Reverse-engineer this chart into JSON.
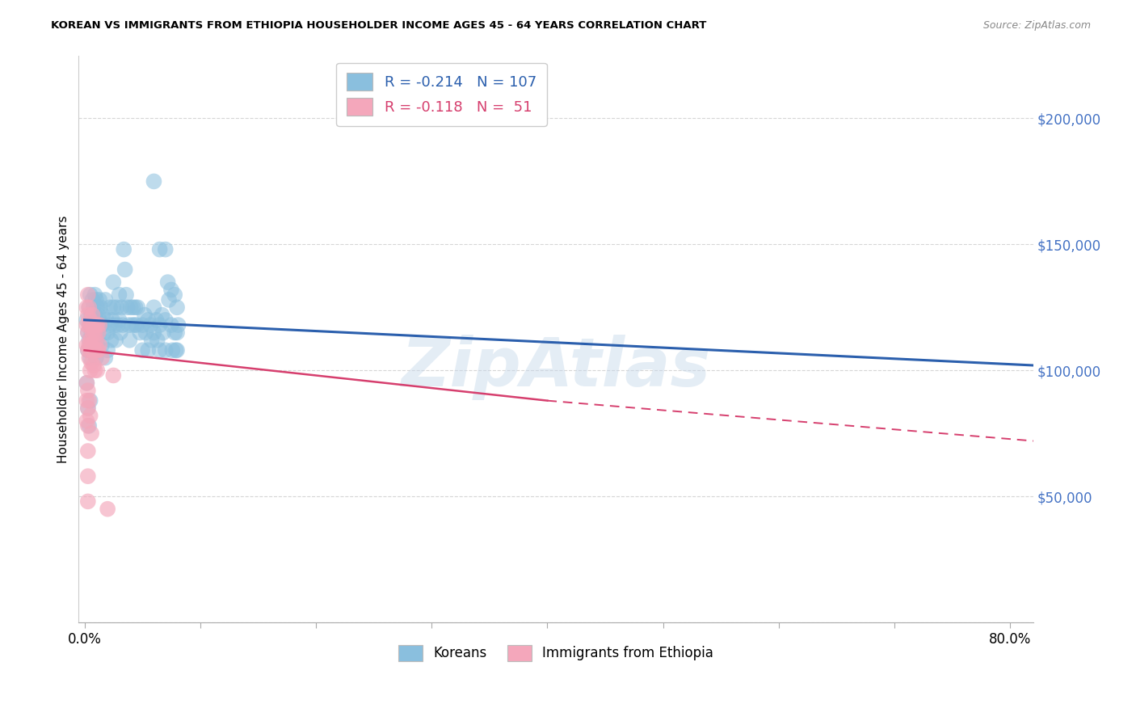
{
  "title": "KOREAN VS IMMIGRANTS FROM ETHIOPIA HOUSEHOLDER INCOME AGES 45 - 64 YEARS CORRELATION CHART",
  "source": "Source: ZipAtlas.com",
  "ylabel": "Householder Income Ages 45 - 64 years",
  "xlim": [
    -0.005,
    0.82
  ],
  "ylim": [
    0,
    225000
  ],
  "yticks": [
    0,
    50000,
    100000,
    150000,
    200000
  ],
  "ytick_labels": [
    "",
    "$50,000",
    "$100,000",
    "$150,000",
    "$200,000"
  ],
  "legend_korean_R": "-0.214",
  "legend_korean_N": "107",
  "legend_ethiopia_R": "-0.118",
  "legend_ethiopia_N": "51",
  "korean_color": "#8abfde",
  "ethiopia_color": "#f4a7bb",
  "korean_line_color": "#2b5fad",
  "ethiopia_line_color": "#d63f6e",
  "watermark": "ZipAtlas",
  "korean_line": [
    0.0,
    120000,
    0.82,
    102000
  ],
  "ethiopia_line_solid": [
    0.0,
    108000,
    0.4,
    88000
  ],
  "ethiopia_line_dashed": [
    0.4,
    88000,
    0.82,
    72000
  ],
  "korean_points": [
    [
      0.002,
      120000
    ],
    [
      0.003,
      115000
    ],
    [
      0.003,
      108000
    ],
    [
      0.004,
      125000
    ],
    [
      0.004,
      112000
    ],
    [
      0.005,
      130000
    ],
    [
      0.005,
      118000
    ],
    [
      0.005,
      105000
    ],
    [
      0.006,
      122000
    ],
    [
      0.006,
      115000
    ],
    [
      0.006,
      108000
    ],
    [
      0.007,
      128000
    ],
    [
      0.007,
      120000
    ],
    [
      0.007,
      112000
    ],
    [
      0.008,
      125000
    ],
    [
      0.008,
      118000
    ],
    [
      0.008,
      110000
    ],
    [
      0.009,
      130000
    ],
    [
      0.009,
      122000
    ],
    [
      0.009,
      115000
    ],
    [
      0.01,
      128000
    ],
    [
      0.01,
      120000
    ],
    [
      0.01,
      112000
    ],
    [
      0.01,
      105000
    ],
    [
      0.011,
      125000
    ],
    [
      0.011,
      118000
    ],
    [
      0.011,
      110000
    ],
    [
      0.012,
      122000
    ],
    [
      0.012,
      115000
    ],
    [
      0.013,
      128000
    ],
    [
      0.013,
      120000
    ],
    [
      0.014,
      125000
    ],
    [
      0.015,
      118000
    ],
    [
      0.015,
      110000
    ],
    [
      0.016,
      122000
    ],
    [
      0.017,
      115000
    ],
    [
      0.018,
      128000
    ],
    [
      0.018,
      105000
    ],
    [
      0.019,
      120000
    ],
    [
      0.02,
      115000
    ],
    [
      0.02,
      108000
    ],
    [
      0.022,
      125000
    ],
    [
      0.022,
      118000
    ],
    [
      0.023,
      112000
    ],
    [
      0.024,
      120000
    ],
    [
      0.025,
      135000
    ],
    [
      0.025,
      125000
    ],
    [
      0.026,
      118000
    ],
    [
      0.027,
      112000
    ],
    [
      0.028,
      125000
    ],
    [
      0.029,
      118000
    ],
    [
      0.03,
      130000
    ],
    [
      0.03,
      120000
    ],
    [
      0.031,
      115000
    ],
    [
      0.032,
      125000
    ],
    [
      0.033,
      118000
    ],
    [
      0.034,
      148000
    ],
    [
      0.035,
      140000
    ],
    [
      0.036,
      130000
    ],
    [
      0.037,
      125000
    ],
    [
      0.038,
      118000
    ],
    [
      0.039,
      112000
    ],
    [
      0.04,
      125000
    ],
    [
      0.041,
      118000
    ],
    [
      0.042,
      125000
    ],
    [
      0.043,
      118000
    ],
    [
      0.044,
      125000
    ],
    [
      0.045,
      118000
    ],
    [
      0.046,
      125000
    ],
    [
      0.048,
      115000
    ],
    [
      0.05,
      118000
    ],
    [
      0.05,
      108000
    ],
    [
      0.052,
      122000
    ],
    [
      0.053,
      115000
    ],
    [
      0.055,
      120000
    ],
    [
      0.055,
      108000
    ],
    [
      0.057,
      118000
    ],
    [
      0.058,
      112000
    ],
    [
      0.06,
      125000
    ],
    [
      0.06,
      115000
    ],
    [
      0.06,
      175000
    ],
    [
      0.062,
      120000
    ],
    [
      0.063,
      112000
    ],
    [
      0.065,
      148000
    ],
    [
      0.065,
      118000
    ],
    [
      0.065,
      108000
    ],
    [
      0.067,
      122000
    ],
    [
      0.068,
      115000
    ],
    [
      0.07,
      148000
    ],
    [
      0.07,
      120000
    ],
    [
      0.07,
      108000
    ],
    [
      0.072,
      135000
    ],
    [
      0.073,
      128000
    ],
    [
      0.075,
      132000
    ],
    [
      0.075,
      118000
    ],
    [
      0.076,
      108000
    ],
    [
      0.078,
      130000
    ],
    [
      0.078,
      115000
    ],
    [
      0.079,
      108000
    ],
    [
      0.08,
      125000
    ],
    [
      0.08,
      115000
    ],
    [
      0.08,
      108000
    ],
    [
      0.081,
      118000
    ],
    [
      0.002,
      95000
    ],
    [
      0.003,
      85000
    ],
    [
      0.004,
      78000
    ],
    [
      0.005,
      88000
    ]
  ],
  "ethiopia_points": [
    [
      0.002,
      125000
    ],
    [
      0.002,
      118000
    ],
    [
      0.002,
      110000
    ],
    [
      0.003,
      130000
    ],
    [
      0.003,
      122000
    ],
    [
      0.003,
      115000
    ],
    [
      0.003,
      108000
    ],
    [
      0.004,
      125000
    ],
    [
      0.004,
      118000
    ],
    [
      0.004,
      110000
    ],
    [
      0.004,
      105000
    ],
    [
      0.005,
      120000
    ],
    [
      0.005,
      112000
    ],
    [
      0.005,
      108000
    ],
    [
      0.005,
      100000
    ],
    [
      0.006,
      118000
    ],
    [
      0.006,
      110000
    ],
    [
      0.006,
      103000
    ],
    [
      0.007,
      122000
    ],
    [
      0.007,
      115000
    ],
    [
      0.007,
      108000
    ],
    [
      0.008,
      118000
    ],
    [
      0.008,
      110000
    ],
    [
      0.008,
      102000
    ],
    [
      0.009,
      115000
    ],
    [
      0.009,
      108000
    ],
    [
      0.009,
      100000
    ],
    [
      0.01,
      118000
    ],
    [
      0.01,
      112000
    ],
    [
      0.011,
      118000
    ],
    [
      0.011,
      108000
    ],
    [
      0.011,
      100000
    ],
    [
      0.012,
      115000
    ],
    [
      0.012,
      108000
    ],
    [
      0.013,
      118000
    ],
    [
      0.013,
      110000
    ],
    [
      0.002,
      95000
    ],
    [
      0.002,
      88000
    ],
    [
      0.002,
      80000
    ],
    [
      0.003,
      92000
    ],
    [
      0.003,
      85000
    ],
    [
      0.003,
      78000
    ],
    [
      0.003,
      68000
    ],
    [
      0.003,
      58000
    ],
    [
      0.003,
      48000
    ],
    [
      0.004,
      88000
    ],
    [
      0.005,
      82000
    ],
    [
      0.006,
      75000
    ],
    [
      0.015,
      105000
    ],
    [
      0.02,
      45000
    ],
    [
      0.025,
      98000
    ]
  ],
  "point_size": 200
}
